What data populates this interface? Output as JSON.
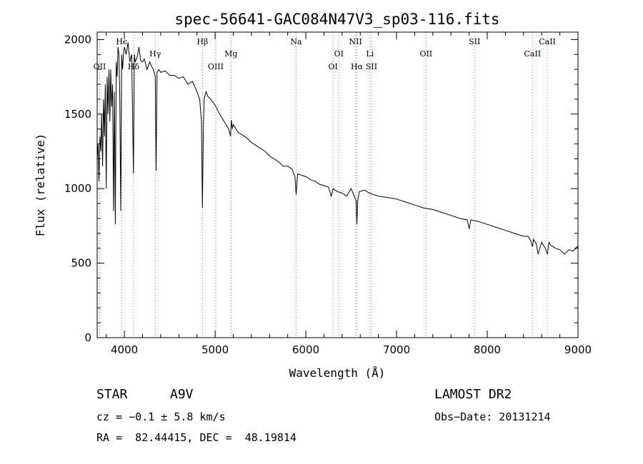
{
  "colors": {
    "line_marker": "#e06666",
    "spectrum": "#000000",
    "frame": "#000000"
  },
  "chart_data": {
    "type": "line",
    "title": "spec-56641-GAC084N47V3_sp03-116.fits",
    "xlabel": "Wavelength (Å)",
    "ylabel": "Flux (relative)",
    "xlim": [
      3700,
      9000
    ],
    "ylim": [
      0,
      2050
    ],
    "xticks": [
      4000,
      5000,
      6000,
      7000,
      8000,
      9000
    ],
    "yticks": [
      0,
      500,
      1000,
      1500,
      2000
    ],
    "grid": false,
    "series": [
      {
        "x": [
          3700,
          3710,
          3720,
          3730,
          3740,
          3750,
          3760,
          3770,
          3780,
          3790,
          3800,
          3810,
          3820,
          3830,
          3840,
          3850,
          3860,
          3870,
          3880,
          3890,
          3900,
          3910,
          3920,
          3930,
          3940,
          3950,
          3960,
          3970,
          3980,
          3990,
          4000,
          4020,
          4040,
          4060,
          4080,
          4100,
          4110,
          4120,
          4140,
          4160,
          4180,
          4200,
          4220,
          4250,
          4280,
          4300,
          4320,
          4340,
          4350,
          4360,
          4380,
          4400,
          4450,
          4500,
          4550,
          4600,
          4650,
          4700,
          4750,
          4800,
          4830,
          4850,
          4860,
          4870,
          4880,
          4900,
          4920,
          4950,
          5000,
          5050,
          5100,
          5150,
          5170,
          5180,
          5190,
          5200,
          5250,
          5300,
          5350,
          5400,
          5450,
          5500,
          5550,
          5600,
          5650,
          5700,
          5750,
          5800,
          5850,
          5880,
          5893,
          5910,
          5950,
          6000,
          6050,
          6100,
          6150,
          6200,
          6250,
          6280,
          6300,
          6320,
          6350,
          6400,
          6450,
          6500,
          6540,
          6555,
          6563,
          6572,
          6590,
          6650,
          6700,
          6800,
          6900,
          7000,
          7100,
          7200,
          7300,
          7400,
          7500,
          7600,
          7700,
          7780,
          7800,
          7820,
          7900,
          8000,
          8100,
          8200,
          8300,
          8400,
          8450,
          8480,
          8498,
          8510,
          8540,
          8560,
          8600,
          8620,
          8640,
          8662,
          8680,
          8700,
          8750,
          8800,
          8850,
          8900,
          8940,
          8960,
          8980,
          8990,
          9000
        ],
        "values": [
          1200,
          1300,
          1050,
          1350,
          1250,
          1500,
          1150,
          1600,
          1350,
          1700,
          1000,
          1750,
          1500,
          1800,
          1450,
          1800,
          1550,
          1700,
          850,
          1650,
          760,
          1850,
          1750,
          1950,
          1900,
          1600,
          850,
          1900,
          1800,
          1900,
          1950,
          1900,
          1980,
          1850,
          1900,
          1100,
          1900,
          1850,
          1880,
          1950,
          1860,
          1850,
          1870,
          1800,
          1850,
          1820,
          1800,
          1750,
          1120,
          1780,
          1800,
          1780,
          1790,
          1760,
          1760,
          1740,
          1750,
          1700,
          1720,
          1650,
          1600,
          1450,
          870,
          1400,
          1600,
          1650,
          1620,
          1600,
          1560,
          1500,
          1450,
          1400,
          1350,
          1460,
          1400,
          1430,
          1380,
          1360,
          1340,
          1310,
          1290,
          1270,
          1250,
          1220,
          1200,
          1180,
          1150,
          1150,
          1130,
          1080,
          960,
          1100,
          1090,
          1080,
          1060,
          1050,
          1030,
          1020,
          1010,
          950,
          1000,
          990,
          980,
          970,
          950,
          1000,
          940,
          920,
          760,
          920,
          980,
          990,
          970,
          950,
          940,
          930,
          910,
          890,
          870,
          860,
          840,
          820,
          800,
          790,
          730,
          790,
          780,
          760,
          740,
          720,
          700,
          680,
          680,
          650,
          610,
          660,
          630,
          560,
          640,
          620,
          600,
          560,
          640,
          620,
          600,
          590,
          560,
          590,
          580,
          590,
          600,
          610,
          600
        ]
      }
    ],
    "annotations": [
      "OII",
      "Hϵ",
      "Hδ",
      "Hγ",
      "Hβ",
      "OIII",
      "Mg",
      "Na",
      "OI",
      "OI",
      "NII",
      "Hα",
      "Li",
      "SII",
      "OII",
      "SII",
      "CaII",
      "CaII"
    ]
  },
  "spectral_lines": [
    {
      "label": "OII",
      "wavelength": 3727,
      "row": 2
    },
    {
      "label": "Hϵ",
      "wavelength": 3970,
      "row": 0
    },
    {
      "label": "Hδ",
      "wavelength": 4102,
      "row": 2
    },
    {
      "label": "Hγ",
      "wavelength": 4340,
      "row": 1
    },
    {
      "label": "Hβ",
      "wavelength": 4861,
      "row": 0
    },
    {
      "label": "OIII",
      "wavelength": 5007,
      "row": 2
    },
    {
      "label": "Mg",
      "wavelength": 5175,
      "row": 1
    },
    {
      "label": "Na",
      "wavelength": 5893,
      "row": 0
    },
    {
      "label": "OI",
      "wavelength": 6300,
      "row": 2
    },
    {
      "label": "OI",
      "wavelength": 6364,
      "row": 1
    },
    {
      "label": "NII",
      "wavelength": 6548,
      "row": 0
    },
    {
      "label": "Hα",
      "wavelength": 6563,
      "row": 2
    },
    {
      "label": "Li",
      "wavelength": 6707,
      "row": 1
    },
    {
      "label": "SII",
      "wavelength": 6724,
      "row": 2
    },
    {
      "label": "OII",
      "wavelength": 7325,
      "row": 1
    },
    {
      "label": "SII",
      "wavelength": 7860,
      "row": 0
    },
    {
      "label": "CaII",
      "wavelength": 8498,
      "row": 1
    },
    {
      "label": "CaII",
      "wavelength": 8662,
      "row": 0
    }
  ],
  "info": {
    "object_class": "STAR",
    "subclass": "A9V",
    "survey": "LAMOST DR2",
    "velocity": "cz = −0.1 ± 5.8 km/s",
    "obs_date": "Obs−Date: 20131214",
    "coords": "RA =  82.44415, DEC =  48.19814"
  }
}
